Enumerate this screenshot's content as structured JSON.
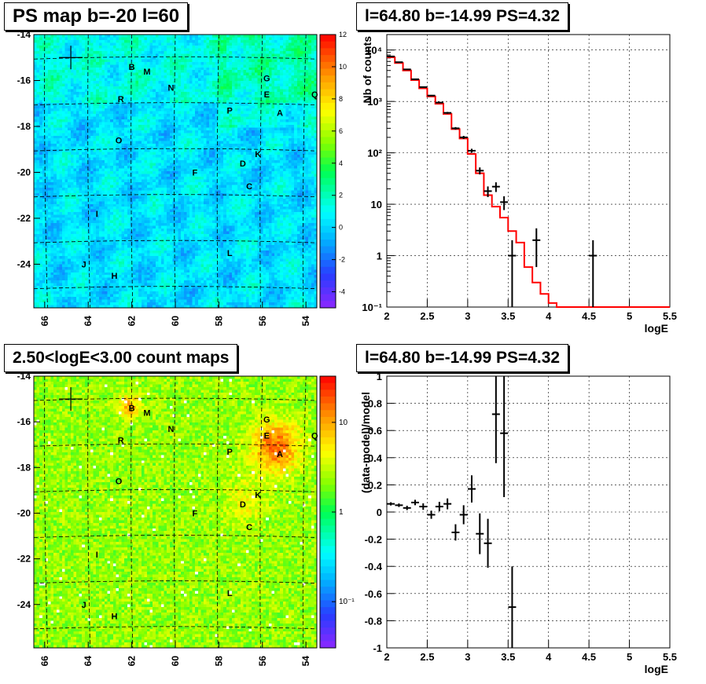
{
  "panels": {
    "ps_map": {
      "title": "PS map b=-20 l=60"
    },
    "count_map": {
      "title": "2.50<logE<3.00 count maps"
    },
    "spectrum": {
      "title": "l=64.80 b=-14.99 PS=4.32"
    },
    "residual": {
      "title": "l=64.80 b=-14.99 PS=4.32"
    }
  },
  "chart_data": [
    {
      "id": "ps_map",
      "type": "heatmap",
      "title": "PS map b=-20 l=60",
      "xlabel": "",
      "ylabel": "",
      "x_ticks": [
        "66",
        "64",
        "62",
        "60",
        "58",
        "56",
        "54"
      ],
      "y_ticks": [
        "-14",
        "-16",
        "-18",
        "-20",
        "-22",
        "-24"
      ],
      "xlim": [
        66.5,
        53.5
      ],
      "ylim": [
        -25.9,
        -14
      ],
      "colorbar_ticks": [
        "12",
        "10",
        "8",
        "6",
        "4",
        "2",
        "0",
        "-2",
        "-4"
      ],
      "colorbar_range": [
        -5,
        12
      ],
      "background_value": 1,
      "sources": [
        {
          "label": "B",
          "l": 62.0,
          "b": -15.4
        },
        {
          "label": "M",
          "l": 61.3,
          "b": -15.6
        },
        {
          "label": "G",
          "l": 55.8,
          "b": -15.9
        },
        {
          "label": "N",
          "l": 60.2,
          "b": -16.3
        },
        {
          "label": "E",
          "l": 55.8,
          "b": -16.6
        },
        {
          "label": "Q",
          "l": 53.6,
          "b": -16.6
        },
        {
          "label": "R",
          "l": 62.5,
          "b": -16.8
        },
        {
          "label": "P",
          "l": 57.5,
          "b": -17.3
        },
        {
          "label": "A",
          "l": 55.2,
          "b": -17.4
        },
        {
          "label": "O",
          "l": 62.6,
          "b": -18.6
        },
        {
          "label": "K",
          "l": 56.2,
          "b": -19.2
        },
        {
          "label": "D",
          "l": 56.9,
          "b": -19.6
        },
        {
          "label": "F",
          "l": 59.1,
          "b": -20.0
        },
        {
          "label": "C",
          "l": 56.6,
          "b": -20.6
        },
        {
          "label": "I",
          "l": 63.6,
          "b": -21.8
        },
        {
          "label": "L",
          "l": 57.5,
          "b": -23.5
        },
        {
          "label": "J",
          "l": 64.2,
          "b": -24.0
        },
        {
          "label": "H",
          "l": 62.8,
          "b": -24.5
        }
      ],
      "marker": {
        "l": 64.8,
        "b": -15.0
      }
    },
    {
      "id": "count_map",
      "type": "heatmap",
      "title": "2.50<logE<3.00 count maps",
      "x_ticks": [
        "66",
        "64",
        "62",
        "60",
        "58",
        "56",
        "54"
      ],
      "y_ticks": [
        "-14",
        "-16",
        "-18",
        "-20",
        "-22",
        "-24"
      ],
      "xlim": [
        66.5,
        53.5
      ],
      "ylim": [
        -25.9,
        -14
      ],
      "colorbar_ticks": [
        "10",
        "1",
        "10⁻¹"
      ],
      "colorbar_log": true,
      "sources_same_as": "ps_map",
      "marker": {
        "l": 64.8,
        "b": -15.0
      }
    },
    {
      "id": "spectrum",
      "type": "line",
      "title": "l=64.80 b=-14.99 PS=4.32",
      "xlabel": "logE",
      "ylabel": "Nb of counts",
      "xlim": [
        2,
        5.5
      ],
      "ylim": [
        0.1,
        20000
      ],
      "ylog": true,
      "x_ticks": [
        "2",
        "2.5",
        "3",
        "3.5",
        "4",
        "4.5",
        "5",
        "5.5"
      ],
      "y_ticks": [
        "10⁻¹",
        "1",
        "10",
        "10²",
        "10³",
        "10⁴"
      ],
      "grid": true,
      "data": {
        "x": [
          2.05,
          2.15,
          2.25,
          2.35,
          2.45,
          2.55,
          2.65,
          2.75,
          2.85,
          2.95,
          3.05,
          3.15,
          3.25,
          3.35,
          3.45,
          3.55,
          3.85,
          4.55
        ],
        "y": [
          7500,
          5800,
          4200,
          2700,
          1900,
          1300,
          950,
          600,
          300,
          200,
          110,
          45,
          18,
          22,
          11,
          1,
          2,
          1
        ],
        "yerr": [
          87,
          76,
          65,
          52,
          44,
          36,
          31,
          25,
          17,
          14,
          10,
          7,
          4.2,
          4.7,
          3.3,
          1,
          1.4,
          1
        ]
      },
      "model": {
        "name": "model",
        "color": "#ff0000",
        "edges": [
          2.0,
          2.1,
          2.2,
          2.3,
          2.4,
          2.5,
          2.6,
          2.7,
          2.8,
          2.9,
          3.0,
          3.1,
          3.2,
          3.3,
          3.4,
          3.5,
          3.6,
          3.7,
          3.8,
          3.9,
          4.0,
          4.1,
          5.5
        ],
        "values": [
          7200,
          5600,
          4000,
          2600,
          1800,
          1250,
          900,
          570,
          290,
          190,
          95,
          40,
          15,
          9,
          5.5,
          3,
          1.8,
          0.6,
          0.3,
          0.18,
          0.12,
          0.1
        ]
      }
    },
    {
      "id": "residual",
      "type": "scatter",
      "title": "l=64.80 b=-14.99 PS=4.32",
      "xlabel": "logE",
      "ylabel": "(data-model)/model",
      "xlim": [
        2,
        5.5
      ],
      "ylim": [
        -1,
        1
      ],
      "x_ticks": [
        "2",
        "2.5",
        "3",
        "3.5",
        "4",
        "4.5",
        "5",
        "5.5"
      ],
      "y_ticks": [
        "1",
        "0.8",
        "0.6",
        "0.4",
        "0.2",
        "0",
        "-0.2",
        "-0.4",
        "-0.6",
        "-0.8",
        "-1"
      ],
      "grid": true,
      "data": {
        "x": [
          2.05,
          2.15,
          2.25,
          2.35,
          2.45,
          2.55,
          2.65,
          2.75,
          2.85,
          2.95,
          3.05,
          3.15,
          3.25,
          3.35,
          3.45,
          3.55
        ],
        "y": [
          0.06,
          0.05,
          0.03,
          0.07,
          0.04,
          -0.02,
          0.04,
          0.06,
          -0.15,
          -0.02,
          0.17,
          -0.16,
          -0.23,
          0.72,
          0.58,
          -0.7
        ],
        "yerr": [
          0.012,
          0.013,
          0.016,
          0.02,
          0.024,
          0.03,
          0.035,
          0.04,
          0.06,
          0.07,
          0.1,
          0.15,
          0.18,
          0.36,
          0.47,
          0.3
        ]
      }
    }
  ]
}
